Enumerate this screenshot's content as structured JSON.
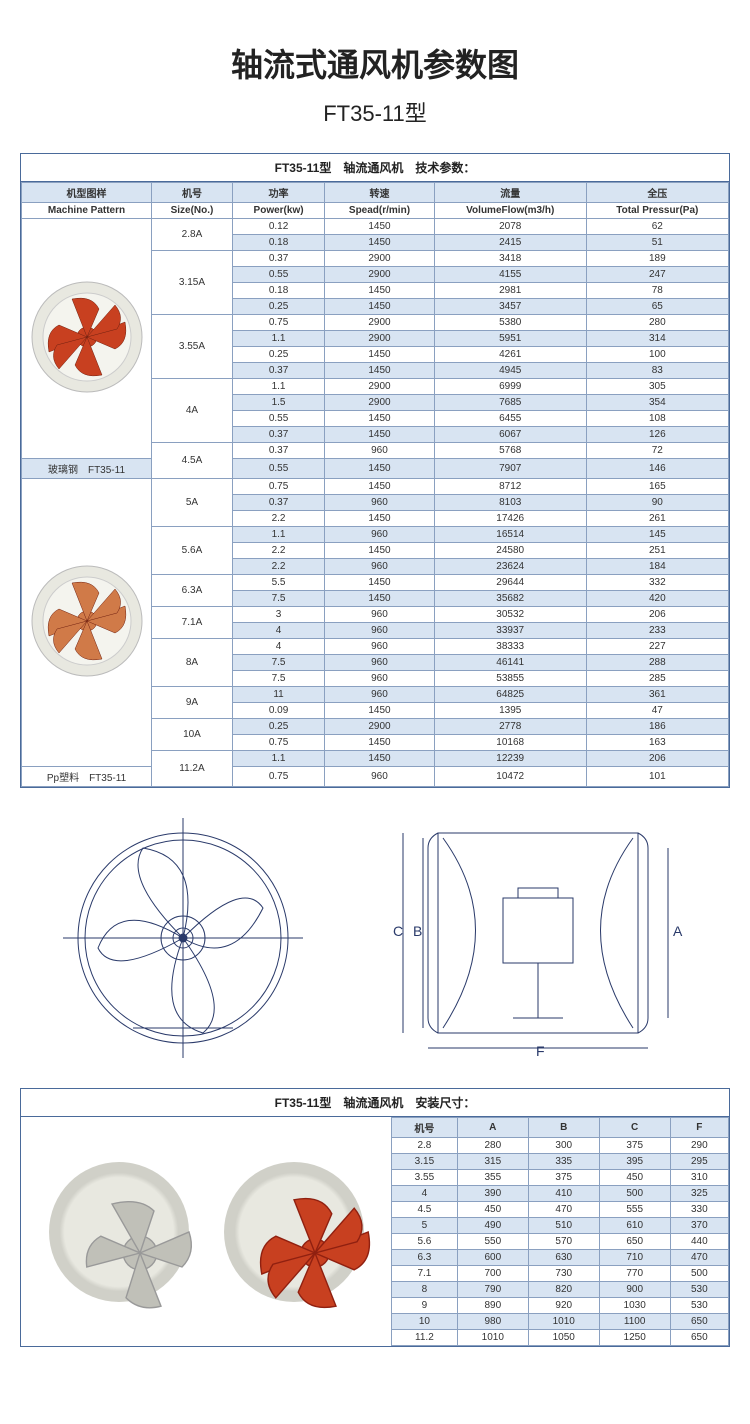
{
  "titles": {
    "main": "轴流式通风机参数图",
    "sub": "FT35-11型",
    "specs_caption": "FT35-11型　轴流通风机　技术参数：",
    "dims_caption": "FT35-11型　轴流通风机　安装尺寸："
  },
  "spec_headers": {
    "cn": [
      "机型图样",
      "机号",
      "功率",
      "转速",
      "流量",
      "全压"
    ],
    "en": [
      "Machine Pattern",
      "Size(No.)",
      "Power(kw)",
      "Spead(r/min)",
      "VolumeFlow(m3/h)",
      "Total Pressur(Pa)"
    ]
  },
  "pattern_labels": {
    "first": "玻璃钢　FT35-11",
    "second": "Pp塑料　FT35-11"
  },
  "spec_groups": [
    {
      "size": "2.8A",
      "rows": [
        [
          0.12,
          1450,
          2078,
          62
        ],
        [
          0.18,
          1450,
          2415,
          51
        ]
      ]
    },
    {
      "size": "3.15A",
      "rows": [
        [
          0.37,
          2900,
          3418,
          189
        ],
        [
          0.55,
          2900,
          4155,
          247
        ],
        [
          0.18,
          1450,
          2981,
          78
        ],
        [
          0.25,
          1450,
          3457,
          65
        ]
      ]
    },
    {
      "size": "3.55A",
      "rows": [
        [
          0.75,
          2900,
          5380,
          280
        ],
        [
          1.1,
          2900,
          5951,
          314
        ],
        [
          0.25,
          1450,
          4261,
          100
        ],
        [
          0.37,
          1450,
          4945,
          83
        ]
      ]
    },
    {
      "size": "4A",
      "rows": [
        [
          1.1,
          2900,
          6999,
          305
        ],
        [
          1.5,
          2900,
          7685,
          354
        ],
        [
          0.55,
          1450,
          6455,
          108
        ],
        [
          0.37,
          1450,
          6067,
          126
        ]
      ]
    },
    {
      "size": "4.5A",
      "rows": [
        [
          0.37,
          960,
          5768,
          72
        ],
        [
          0.55,
          1450,
          7907,
          146
        ]
      ]
    },
    {
      "size": "5A",
      "rows": [
        [
          0.75,
          1450,
          8712,
          165
        ],
        [
          0.37,
          960,
          8103,
          90
        ],
        [
          2.2,
          1450,
          17426,
          261
        ]
      ]
    },
    {
      "size": "5.6A",
      "rows": [
        [
          1.1,
          960,
          16514,
          145
        ],
        [
          2.2,
          1450,
          24580,
          251
        ],
        [
          2.2,
          960,
          23624,
          184
        ]
      ]
    },
    {
      "size": "6.3A",
      "rows": [
        [
          5.5,
          1450,
          29644,
          332
        ],
        [
          7.5,
          1450,
          35682,
          420
        ]
      ]
    },
    {
      "size": "7.1A",
      "rows": [
        [
          3,
          960,
          30532,
          206
        ],
        [
          4,
          960,
          33937,
          233
        ]
      ]
    },
    {
      "size": "8A",
      "rows": [
        [
          4,
          960,
          38333,
          227
        ],
        [
          7.5,
          960,
          46141,
          288
        ],
        [
          7.5,
          960,
          53855,
          285
        ]
      ]
    },
    {
      "size": "9A",
      "rows": [
        [
          11,
          960,
          64825,
          361
        ],
        [
          0.09,
          1450,
          1395,
          47
        ]
      ]
    },
    {
      "size": "10A",
      "rows": [
        [
          0.25,
          2900,
          2778,
          186
        ],
        [
          0.75,
          1450,
          10168,
          163
        ]
      ]
    },
    {
      "size": "11.2A",
      "rows": [
        [
          1.1,
          1450,
          12239,
          206
        ],
        [
          0.75,
          960,
          10472,
          101
        ]
      ]
    }
  ],
  "diagram_labels": {
    "A": "A",
    "B": "B",
    "C": "C",
    "F": "F"
  },
  "dims_headers": [
    "机号",
    "A",
    "B",
    "C",
    "F"
  ],
  "dims_rows": [
    [
      "2.8",
      280,
      300,
      375,
      290
    ],
    [
      "3.15",
      315,
      335,
      395,
      295
    ],
    [
      "3.55",
      355,
      375,
      450,
      310
    ],
    [
      "4",
      390,
      410,
      500,
      325
    ],
    [
      "4.5",
      450,
      470,
      555,
      330
    ],
    [
      "5",
      490,
      510,
      610,
      370
    ],
    [
      "5.6",
      550,
      570,
      650,
      440
    ],
    [
      "6.3",
      600,
      630,
      710,
      470
    ],
    [
      "7.1",
      700,
      730,
      770,
      500
    ],
    [
      "8",
      790,
      820,
      900,
      530
    ],
    [
      "9",
      890,
      920,
      1030,
      530
    ],
    [
      "10",
      980,
      1010,
      1100,
      650
    ],
    [
      "11.2",
      1010,
      1050,
      1250,
      650
    ]
  ],
  "colors": {
    "border": "#4a6a9a",
    "cell_border": "#8aa0c0",
    "band": "#d8e4f2",
    "blade": "#c84020",
    "blade2": "#d07a48",
    "casing": "#e8e8e0"
  }
}
